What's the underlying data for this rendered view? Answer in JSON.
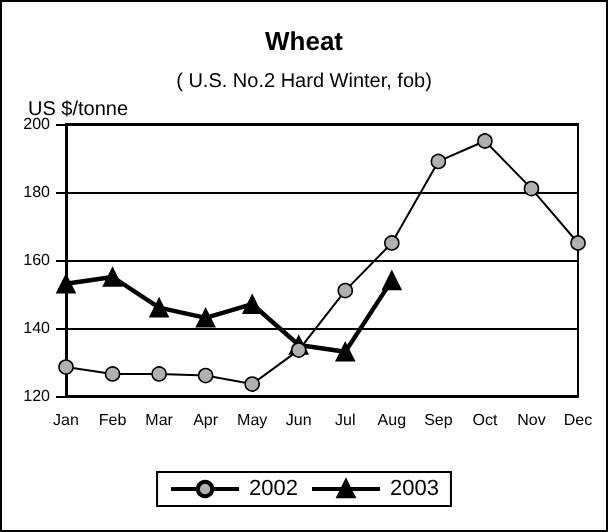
{
  "chart_data": {
    "type": "line",
    "title": "Wheat",
    "subtitle": "( U.S. No.2 Hard Winter, fob)",
    "ylabel": "US $/tonne",
    "categories": [
      "Jan",
      "Feb",
      "Mar",
      "Apr",
      "May",
      "Jun",
      "Jul",
      "Aug",
      "Sep",
      "Oct",
      "Nov",
      "Dec"
    ],
    "series": [
      {
        "name": "2002",
        "color": "#b0b0b0",
        "marker": "circle",
        "values": [
          128.5,
          126.5,
          126.5,
          126,
          123.5,
          133.5,
          151,
          165,
          189,
          195,
          181,
          165
        ]
      },
      {
        "name": "2003",
        "color": "#000000",
        "marker": "triangle",
        "values": [
          153,
          155,
          146,
          143,
          147,
          135,
          133,
          154,
          null,
          null,
          null,
          null
        ]
      }
    ],
    "ylim": [
      120,
      200
    ],
    "yticks": [
      120,
      140,
      160,
      180,
      200
    ],
    "grid": "y",
    "legend": "bottom"
  }
}
